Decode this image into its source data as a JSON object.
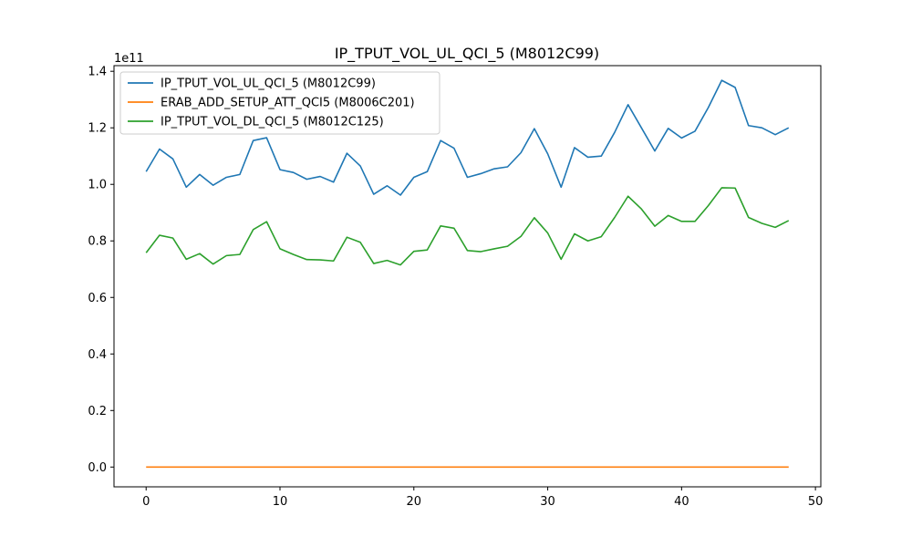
{
  "chart_data": {
    "type": "line",
    "title": "IP_TPUT_VOL_UL_QCI_5 (M8012C99)",
    "xlabel": "",
    "ylabel": "",
    "y_offset_label": "1e11",
    "xlim": [
      -2.4,
      50.4
    ],
    "ylim": [
      -0.07,
      1.42
    ],
    "x_ticks": [
      0,
      10,
      20,
      30,
      40,
      50
    ],
    "y_ticks": [
      0.0,
      0.2,
      0.4,
      0.6,
      0.8,
      1.0,
      1.2,
      1.4
    ],
    "x_tick_labels": [
      "0",
      "10",
      "20",
      "30",
      "40",
      "50"
    ],
    "y_tick_labels": [
      "0.0",
      "0.2",
      "0.4",
      "0.6",
      "0.8",
      "1.0",
      "1.2",
      "1.4"
    ],
    "grid": false,
    "legend_position": "top-left",
    "x": [
      0,
      1,
      2,
      3,
      4,
      5,
      6,
      7,
      8,
      9,
      10,
      11,
      12,
      13,
      14,
      15,
      16,
      17,
      18,
      19,
      20,
      21,
      22,
      23,
      24,
      25,
      26,
      27,
      28,
      29,
      30,
      31,
      32,
      33,
      34,
      35,
      36,
      37,
      38,
      39,
      40,
      41,
      42,
      43,
      44,
      45,
      46,
      47,
      48
    ],
    "series": [
      {
        "name": "IP_TPUT_VOL_UL_QCI_5 (M8012C99)",
        "color": "#1f77b4",
        "values": [
          1.045,
          1.125,
          1.09,
          0.99,
          1.035,
          0.997,
          1.025,
          1.035,
          1.155,
          1.165,
          1.052,
          1.042,
          1.018,
          1.028,
          1.008,
          1.11,
          1.065,
          0.965,
          0.995,
          0.962,
          1.025,
          1.045,
          1.155,
          1.128,
          1.025,
          1.038,
          1.055,
          1.062,
          1.112,
          1.197,
          1.108,
          0.99,
          1.13,
          1.096,
          1.1,
          1.184,
          1.282,
          1.2,
          1.118,
          1.198,
          1.164,
          1.188,
          1.272,
          1.368,
          1.343,
          1.208,
          1.2,
          1.176,
          1.2
        ]
      },
      {
        "name": "ERAB_ADD_SETUP_ATT_QCI5 (M8006C201)",
        "color": "#ff7f0e",
        "values": [
          0,
          0,
          0,
          0,
          0,
          0,
          0,
          0,
          0,
          0,
          0,
          0,
          0,
          0,
          0,
          0,
          0,
          0,
          0,
          0,
          0,
          0,
          0,
          0,
          0,
          0,
          0,
          0,
          0,
          0,
          0,
          0,
          0,
          0,
          0,
          0,
          0,
          0,
          0,
          0,
          0,
          0,
          0,
          0,
          0,
          0,
          0,
          0,
          0
        ]
      },
      {
        "name": "IP_TPUT_VOL_DL_QCI_5 (M8012C125)",
        "color": "#2ca02c",
        "values": [
          0.758,
          0.82,
          0.81,
          0.735,
          0.755,
          0.718,
          0.748,
          0.752,
          0.84,
          0.868,
          0.772,
          0.752,
          0.734,
          0.733,
          0.729,
          0.813,
          0.795,
          0.72,
          0.731,
          0.715,
          0.763,
          0.768,
          0.853,
          0.845,
          0.766,
          0.762,
          0.772,
          0.781,
          0.816,
          0.882,
          0.828,
          0.735,
          0.825,
          0.8,
          0.815,
          0.883,
          0.958,
          0.913,
          0.852,
          0.89,
          0.869,
          0.869,
          0.925,
          0.988,
          0.987,
          0.883,
          0.862,
          0.848,
          0.872
        ]
      }
    ]
  }
}
